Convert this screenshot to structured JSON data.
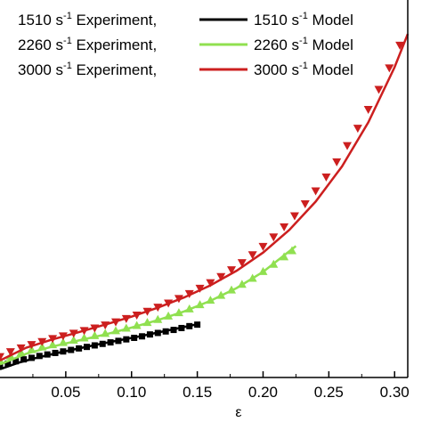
{
  "chart_data": {
    "type": "line",
    "xlabel": "ε",
    "ylabel": "",
    "xlim": [
      0.0,
      0.31
    ],
    "ylim": [
      0.0,
      1.0
    ],
    "xticks": [
      "0.05",
      "0.10",
      "0.15",
      "0.20",
      "0.25",
      "0.30"
    ],
    "xtick_values": [
      0.05,
      0.1,
      0.15,
      0.2,
      0.25,
      0.3
    ],
    "grid": false,
    "legend_position": "top",
    "legend": [
      {
        "exp_rate": "1510 s",
        "exp_exp": "-1",
        "exp_suffix": " Experiment,",
        "model_rate": "1510 s",
        "model_exp": "-1",
        "model_suffix": " Model",
        "color": "#000000",
        "marker": "square"
      },
      {
        "exp_rate": "2260 s",
        "exp_exp": "-1",
        "exp_suffix": " Experiment,",
        "model_rate": "2260 s",
        "model_exp": "-1",
        "model_suffix": " Model",
        "color": "#90e050",
        "marker": "triangle-up"
      },
      {
        "exp_rate": "3000 s",
        "exp_exp": "-1",
        "exp_suffix": " Experiment,",
        "model_rate": "3000 s",
        "model_exp": "-1",
        "model_suffix": " Model",
        "color": "#cc1f1f",
        "marker": "triangle-down"
      }
    ],
    "series": [
      {
        "color": "#000000",
        "marker": "square",
        "experiment": {
          "x": [
            0.0,
            0.006,
            0.012,
            0.018,
            0.024,
            0.03,
            0.036,
            0.042,
            0.048,
            0.054,
            0.06,
            0.066,
            0.072,
            0.078,
            0.084,
            0.09,
            0.096,
            0.102,
            0.108,
            0.114,
            0.12,
            0.126,
            0.132,
            0.138,
            0.144,
            0.15
          ],
          "y": [
            0.03,
            0.037,
            0.043,
            0.048,
            0.052,
            0.057,
            0.061,
            0.065,
            0.069,
            0.073,
            0.077,
            0.081,
            0.085,
            0.089,
            0.093,
            0.097,
            0.101,
            0.105,
            0.109,
            0.114,
            0.118,
            0.122,
            0.126,
            0.131,
            0.136,
            0.14
          ]
        },
        "model": {
          "x": [
            0.0,
            0.015,
            0.03,
            0.045,
            0.06,
            0.075,
            0.09,
            0.105,
            0.12,
            0.135,
            0.15
          ],
          "y": [
            0.022,
            0.04,
            0.054,
            0.066,
            0.077,
            0.088,
            0.098,
            0.108,
            0.119,
            0.13,
            0.141
          ]
        }
      },
      {
        "color": "#90e050",
        "marker": "triangle-up",
        "experiment": {
          "x": [
            0.0,
            0.008,
            0.016,
            0.024,
            0.032,
            0.04,
            0.048,
            0.056,
            0.064,
            0.072,
            0.08,
            0.088,
            0.096,
            0.104,
            0.112,
            0.12,
            0.128,
            0.136,
            0.144,
            0.152,
            0.16,
            0.168,
            0.176,
            0.184,
            0.192,
            0.2,
            0.208,
            0.216,
            0.222
          ],
          "y": [
            0.045,
            0.057,
            0.066,
            0.074,
            0.081,
            0.087,
            0.093,
            0.099,
            0.105,
            0.111,
            0.117,
            0.124,
            0.131,
            0.138,
            0.146,
            0.154,
            0.163,
            0.172,
            0.182,
            0.193,
            0.205,
            0.218,
            0.232,
            0.247,
            0.263,
            0.281,
            0.3,
            0.32,
            0.336
          ]
        },
        "model": {
          "x": [
            0.0,
            0.02,
            0.04,
            0.06,
            0.08,
            0.1,
            0.12,
            0.14,
            0.16,
            0.18,
            0.2,
            0.225
          ],
          "y": [
            0.035,
            0.063,
            0.082,
            0.098,
            0.114,
            0.132,
            0.152,
            0.175,
            0.203,
            0.237,
            0.28,
            0.348
          ]
        }
      },
      {
        "color": "#cc1f1f",
        "marker": "triangle-down",
        "experiment": {
          "x": [
            0.0,
            0.008,
            0.016,
            0.024,
            0.032,
            0.04,
            0.048,
            0.056,
            0.064,
            0.072,
            0.08,
            0.088,
            0.096,
            0.104,
            0.112,
            0.12,
            0.128,
            0.136,
            0.144,
            0.152,
            0.16,
            0.168,
            0.176,
            0.184,
            0.192,
            0.2,
            0.208,
            0.216,
            0.224,
            0.232,
            0.24,
            0.248,
            0.256,
            0.264,
            0.272,
            0.28,
            0.288,
            0.296,
            0.304
          ],
          "y": [
            0.055,
            0.068,
            0.078,
            0.087,
            0.095,
            0.103,
            0.11,
            0.117,
            0.124,
            0.131,
            0.139,
            0.147,
            0.156,
            0.165,
            0.175,
            0.186,
            0.197,
            0.209,
            0.222,
            0.236,
            0.251,
            0.267,
            0.285,
            0.304,
            0.325,
            0.347,
            0.372,
            0.399,
            0.428,
            0.46,
            0.494,
            0.531,
            0.571,
            0.614,
            0.66,
            0.71,
            0.763,
            0.82,
            0.88
          ]
        },
        "model": {
          "x": [
            0.0,
            0.02,
            0.04,
            0.06,
            0.08,
            0.1,
            0.12,
            0.14,
            0.16,
            0.18,
            0.2,
            0.22,
            0.24,
            0.26,
            0.28,
            0.3,
            0.31
          ],
          "y": [
            0.045,
            0.079,
            0.101,
            0.12,
            0.14,
            0.161,
            0.185,
            0.212,
            0.244,
            0.283,
            0.331,
            0.391,
            0.466,
            0.559,
            0.676,
            0.822,
            0.91
          ]
        }
      }
    ]
  }
}
